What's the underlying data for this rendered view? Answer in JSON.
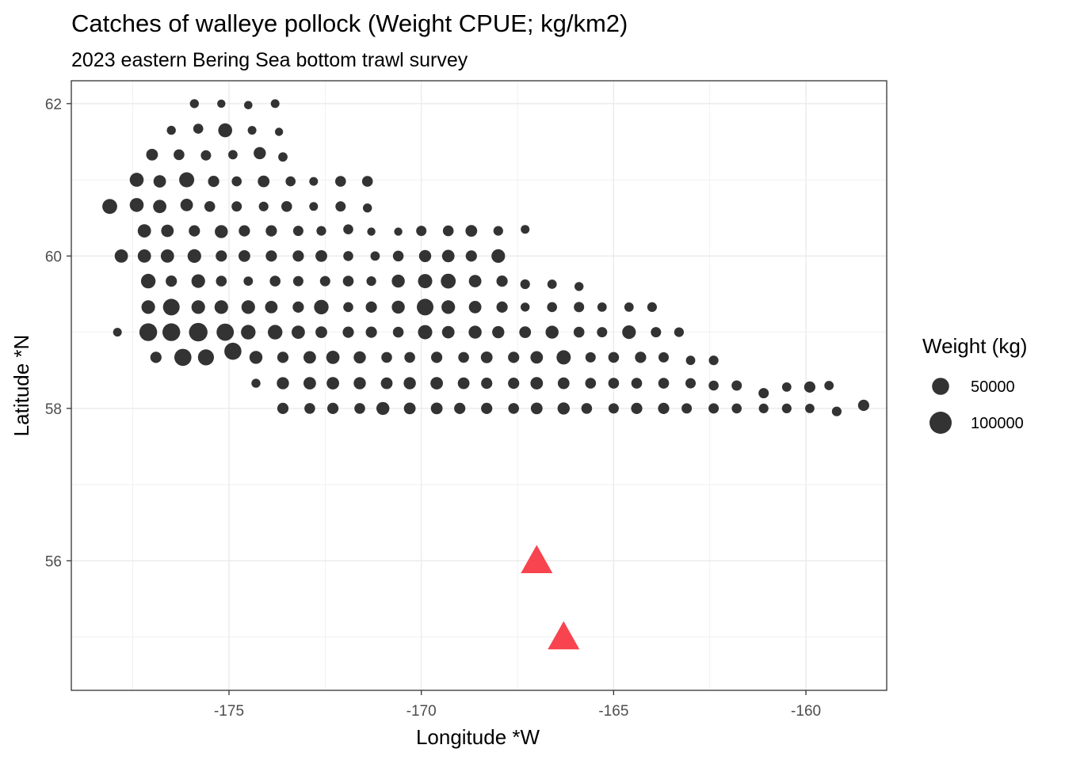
{
  "chart_data": {
    "type": "scatter",
    "title": "Catches of walleye pollock (Weight CPUE; kg/km2)",
    "subtitle": "2023 eastern Bering Sea bottom trawl survey",
    "xlabel": "Longitude *W",
    "ylabel": "Latitude *N",
    "xlim": [
      -179.1,
      -157.9
    ],
    "ylim": [
      54.3,
      62.3
    ],
    "xticks": [
      -175,
      -170,
      -165,
      -160
    ],
    "yticks": [
      56,
      58,
      60,
      62
    ],
    "xtick_labels": [
      "-175",
      "-170",
      "-165",
      "-160"
    ],
    "ytick_labels": [
      "56",
      "58",
      "60",
      "62"
    ],
    "grid": true,
    "legend": {
      "title": "Weight (kg)",
      "position": "right",
      "entries": [
        {
          "label": "50000",
          "value": 50000
        },
        {
          "label": "100000",
          "value": 100000
        }
      ]
    },
    "colors": {
      "points": "#333333",
      "triangles": "#f8444e",
      "grid": "#ebebeb",
      "panel_border": "#333333"
    },
    "series": [
      {
        "name": "Weight (kg)",
        "marker": "circle",
        "points": [
          [
            -175.9,
            62.0,
            6000
          ],
          [
            -175.2,
            62.0,
            4000
          ],
          [
            -174.5,
            61.98,
            4500
          ],
          [
            -173.8,
            62.0,
            5000
          ],
          [
            -176.5,
            61.65,
            6000
          ],
          [
            -175.8,
            61.67,
            9000
          ],
          [
            -175.1,
            61.65,
            28000
          ],
          [
            -174.4,
            61.65,
            5000
          ],
          [
            -173.7,
            61.63,
            4000
          ],
          [
            -177.0,
            61.33,
            16000
          ],
          [
            -176.3,
            61.33,
            12000
          ],
          [
            -175.6,
            61.32,
            10000
          ],
          [
            -174.9,
            61.33,
            7000
          ],
          [
            -174.2,
            61.35,
            18000
          ],
          [
            -173.6,
            61.3,
            7000
          ],
          [
            -177.4,
            61.0,
            28000
          ],
          [
            -176.8,
            60.98,
            20000
          ],
          [
            -176.1,
            61.0,
            35000
          ],
          [
            -175.4,
            60.98,
            14000
          ],
          [
            -174.8,
            60.98,
            9000
          ],
          [
            -174.1,
            60.98,
            16000
          ],
          [
            -173.4,
            60.98,
            9000
          ],
          [
            -172.8,
            60.98,
            5000
          ],
          [
            -172.1,
            60.98,
            12000
          ],
          [
            -171.4,
            60.98,
            12000
          ],
          [
            -178.1,
            60.65,
            34000
          ],
          [
            -177.4,
            60.67,
            28000
          ],
          [
            -176.8,
            60.65,
            24000
          ],
          [
            -176.1,
            60.67,
            20000
          ],
          [
            -175.5,
            60.65,
            12000
          ],
          [
            -174.8,
            60.65,
            10000
          ],
          [
            -174.1,
            60.65,
            8000
          ],
          [
            -173.5,
            60.65,
            12000
          ],
          [
            -172.8,
            60.65,
            5000
          ],
          [
            -172.1,
            60.65,
            10000
          ],
          [
            -171.4,
            60.63,
            6000
          ],
          [
            -177.2,
            60.33,
            24000
          ],
          [
            -176.6,
            60.33,
            20000
          ],
          [
            -175.9,
            60.33,
            14000
          ],
          [
            -175.2,
            60.32,
            22000
          ],
          [
            -174.6,
            60.33,
            14000
          ],
          [
            -173.9,
            60.33,
            14000
          ],
          [
            -173.2,
            60.33,
            10000
          ],
          [
            -172.6,
            60.33,
            8000
          ],
          [
            -171.9,
            60.35,
            9000
          ],
          [
            -171.3,
            60.32,
            4000
          ],
          [
            -170.6,
            60.32,
            4000
          ],
          [
            -170.0,
            60.33,
            10000
          ],
          [
            -169.3,
            60.33,
            12000
          ],
          [
            -168.7,
            60.33,
            16000
          ],
          [
            -168.0,
            60.33,
            8000
          ],
          [
            -167.3,
            60.35,
            5000
          ],
          [
            -177.8,
            60.0,
            24000
          ],
          [
            -177.2,
            60.0,
            24000
          ],
          [
            -176.6,
            60.0,
            24000
          ],
          [
            -175.9,
            60.0,
            26000
          ],
          [
            -175.2,
            60.0,
            14000
          ],
          [
            -174.6,
            60.0,
            16000
          ],
          [
            -173.9,
            60.0,
            14000
          ],
          [
            -173.2,
            60.0,
            14000
          ],
          [
            -172.6,
            60.0,
            16000
          ],
          [
            -171.9,
            60.0,
            9000
          ],
          [
            -171.2,
            60.0,
            7000
          ],
          [
            -170.6,
            60.0,
            12000
          ],
          [
            -169.9,
            60.0,
            18000
          ],
          [
            -169.3,
            60.0,
            20000
          ],
          [
            -168.7,
            60.0,
            14000
          ],
          [
            -168.0,
            60.0,
            26000
          ],
          [
            -177.1,
            59.67,
            32000
          ],
          [
            -176.5,
            59.67,
            14000
          ],
          [
            -175.8,
            59.67,
            26000
          ],
          [
            -175.2,
            59.67,
            12000
          ],
          [
            -174.5,
            59.67,
            7000
          ],
          [
            -173.8,
            59.67,
            12000
          ],
          [
            -173.2,
            59.67,
            10000
          ],
          [
            -172.5,
            59.67,
            10000
          ],
          [
            -171.9,
            59.67,
            12000
          ],
          [
            -171.3,
            59.67,
            8000
          ],
          [
            -170.6,
            59.67,
            22000
          ],
          [
            -169.9,
            59.67,
            30000
          ],
          [
            -169.3,
            59.67,
            34000
          ],
          [
            -168.6,
            59.67,
            20000
          ],
          [
            -167.9,
            59.67,
            14000
          ],
          [
            -167.3,
            59.63,
            8000
          ],
          [
            -166.6,
            59.63,
            7000
          ],
          [
            -165.9,
            59.6,
            6000
          ],
          [
            -177.1,
            59.33,
            26000
          ],
          [
            -176.5,
            59.33,
            46000
          ],
          [
            -175.8,
            59.33,
            26000
          ],
          [
            -175.2,
            59.33,
            26000
          ],
          [
            -174.5,
            59.33,
            26000
          ],
          [
            -173.9,
            59.33,
            20000
          ],
          [
            -173.2,
            59.33,
            14000
          ],
          [
            -172.6,
            59.33,
            32000
          ],
          [
            -171.9,
            59.33,
            9000
          ],
          [
            -171.3,
            59.33,
            14000
          ],
          [
            -170.6,
            59.33,
            22000
          ],
          [
            -169.9,
            59.33,
            46000
          ],
          [
            -169.3,
            59.33,
            26000
          ],
          [
            -168.6,
            59.33,
            20000
          ],
          [
            -167.9,
            59.33,
            14000
          ],
          [
            -167.3,
            59.33,
            6000
          ],
          [
            -166.6,
            59.33,
            9000
          ],
          [
            -165.9,
            59.33,
            10000
          ],
          [
            -165.3,
            59.33,
            7000
          ],
          [
            -164.6,
            59.33,
            7000
          ],
          [
            -164.0,
            59.33,
            8000
          ],
          [
            -177.9,
            59.0,
            5000
          ],
          [
            -177.1,
            59.0,
            56000
          ],
          [
            -176.5,
            59.0,
            56000
          ],
          [
            -175.8,
            59.0,
            62000
          ],
          [
            -175.1,
            59.0,
            52000
          ],
          [
            -174.5,
            59.0,
            32000
          ],
          [
            -173.8,
            59.0,
            32000
          ],
          [
            -173.2,
            59.0,
            24000
          ],
          [
            -172.6,
            59.0,
            16000
          ],
          [
            -171.9,
            59.0,
            14000
          ],
          [
            -171.3,
            59.0,
            14000
          ],
          [
            -170.6,
            59.0,
            12000
          ],
          [
            -169.9,
            59.0,
            30000
          ],
          [
            -169.3,
            59.0,
            20000
          ],
          [
            -168.6,
            59.0,
            22000
          ],
          [
            -168.0,
            59.0,
            18000
          ],
          [
            -167.3,
            59.0,
            16000
          ],
          [
            -166.6,
            59.0,
            22000
          ],
          [
            -165.9,
            59.0,
            12000
          ],
          [
            -165.3,
            59.0,
            10000
          ],
          [
            -164.6,
            59.0,
            26000
          ],
          [
            -163.9,
            59.0,
            10000
          ],
          [
            -163.3,
            59.0,
            8000
          ],
          [
            -176.9,
            58.67,
            14000
          ],
          [
            -176.2,
            58.67,
            50000
          ],
          [
            -175.6,
            58.67,
            42000
          ],
          [
            -174.9,
            58.75,
            50000
          ],
          [
            -174.3,
            58.67,
            22000
          ],
          [
            -173.6,
            58.67,
            14000
          ],
          [
            -172.9,
            58.67,
            20000
          ],
          [
            -172.3,
            58.67,
            24000
          ],
          [
            -171.6,
            58.67,
            18000
          ],
          [
            -170.9,
            58.67,
            12000
          ],
          [
            -170.3,
            58.67,
            12000
          ],
          [
            -169.6,
            58.67,
            14000
          ],
          [
            -168.9,
            58.67,
            12000
          ],
          [
            -168.3,
            58.67,
            16000
          ],
          [
            -167.6,
            58.67,
            14000
          ],
          [
            -167.0,
            58.67,
            20000
          ],
          [
            -166.3,
            58.67,
            30000
          ],
          [
            -165.6,
            58.67,
            10000
          ],
          [
            -165.0,
            58.67,
            12000
          ],
          [
            -164.3,
            58.67,
            14000
          ],
          [
            -163.7,
            58.67,
            10000
          ],
          [
            -163.0,
            58.63,
            7000
          ],
          [
            -162.4,
            58.63,
            8000
          ],
          [
            -174.3,
            58.33,
            6000
          ],
          [
            -173.6,
            58.33,
            18000
          ],
          [
            -172.9,
            58.33,
            20000
          ],
          [
            -172.3,
            58.33,
            20000
          ],
          [
            -171.6,
            58.33,
            18000
          ],
          [
            -170.9,
            58.33,
            16000
          ],
          [
            -170.3,
            58.33,
            18000
          ],
          [
            -169.6,
            58.33,
            20000
          ],
          [
            -168.9,
            58.33,
            16000
          ],
          [
            -168.3,
            58.33,
            14000
          ],
          [
            -167.6,
            58.33,
            14000
          ],
          [
            -167.0,
            58.33,
            20000
          ],
          [
            -166.3,
            58.33,
            16000
          ],
          [
            -165.6,
            58.33,
            12000
          ],
          [
            -165.0,
            58.33,
            12000
          ],
          [
            -164.4,
            58.33,
            12000
          ],
          [
            -163.7,
            58.33,
            12000
          ],
          [
            -163.0,
            58.33,
            10000
          ],
          [
            -162.4,
            58.3,
            9000
          ],
          [
            -161.8,
            58.3,
            10000
          ],
          [
            -161.1,
            58.2,
            10000
          ],
          [
            -160.5,
            58.28,
            7000
          ],
          [
            -159.9,
            58.28,
            14000
          ],
          [
            -159.4,
            58.3,
            7000
          ],
          [
            -173.6,
            58.0,
            14000
          ],
          [
            -172.9,
            58.0,
            12000
          ],
          [
            -172.3,
            58.0,
            14000
          ],
          [
            -171.6,
            58.0,
            12000
          ],
          [
            -171.0,
            58.0,
            22000
          ],
          [
            -170.3,
            58.0,
            16000
          ],
          [
            -169.6,
            58.0,
            16000
          ],
          [
            -169.0,
            58.0,
            14000
          ],
          [
            -168.3,
            58.0,
            14000
          ],
          [
            -167.6,
            58.0,
            12000
          ],
          [
            -167.0,
            58.0,
            16000
          ],
          [
            -166.3,
            58.0,
            18000
          ],
          [
            -165.7,
            58.0,
            12000
          ],
          [
            -165.0,
            58.0,
            10000
          ],
          [
            -164.4,
            58.0,
            14000
          ],
          [
            -163.7,
            58.0,
            14000
          ],
          [
            -163.1,
            58.0,
            10000
          ],
          [
            -162.4,
            58.0,
            10000
          ],
          [
            -161.8,
            58.0,
            9000
          ],
          [
            -161.1,
            58.0,
            8000
          ],
          [
            -160.5,
            58.0,
            8000
          ],
          [
            -159.9,
            58.0,
            7000
          ],
          [
            -159.2,
            57.96,
            8000
          ],
          [
            -158.5,
            58.04,
            14000
          ]
        ]
      },
      {
        "name": "",
        "marker": "triangle",
        "points": [
          [
            -167.0,
            56.0
          ],
          [
            -166.3,
            55.0
          ]
        ]
      }
    ]
  }
}
